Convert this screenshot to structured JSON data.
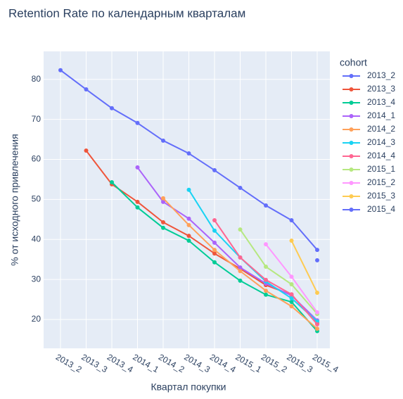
{
  "chart_data": {
    "type": "line",
    "title": "Retention Rate по календарным кварталам",
    "x_label": "Квартал покупки",
    "y_label": "% от исходного привлечения",
    "legend_title": "cohort",
    "categories": [
      "2013_2",
      "2013_3",
      "2013_4",
      "2014_1",
      "2014_2",
      "2014_3",
      "2014_4",
      "2015_1",
      "2015_2",
      "2015_3",
      "2015_4"
    ],
    "ylim": [
      12.8,
      87.0
    ],
    "yticks": [
      20,
      30,
      40,
      50,
      60,
      70,
      80
    ],
    "grid": true,
    "series": [
      {
        "name": "2013_2",
        "color": "#636efa",
        "values": [
          82.3,
          77.5,
          72.8,
          69.1,
          64.7,
          61.5,
          57.3,
          52.9,
          48.5,
          44.8,
          37.4
        ]
      },
      {
        "name": "2013_3",
        "color": "#EF553B",
        "values": [
          null,
          62.2,
          53.8,
          49.4,
          44.3,
          40.9,
          36.5,
          32.7,
          28.6,
          26.2,
          19.1
        ]
      },
      {
        "name": "2013_4",
        "color": "#00cc96",
        "values": [
          null,
          null,
          54.3,
          48.0,
          42.9,
          39.7,
          34.3,
          29.7,
          26.2,
          24.4,
          17.1
        ]
      },
      {
        "name": "2014_1",
        "color": "#ab63fa",
        "values": [
          null,
          null,
          null,
          58.0,
          49.4,
          45.2,
          39.2,
          33.0,
          29.0,
          26.0,
          19.8
        ]
      },
      {
        "name": "2014_2",
        "color": "#FFA15A",
        "values": [
          null,
          null,
          null,
          null,
          50.3,
          43.6,
          37.4,
          32.1,
          27.2,
          23.3,
          17.7
        ]
      },
      {
        "name": "2014_3",
        "color": "#19d3f3",
        "values": [
          null,
          null,
          null,
          null,
          null,
          52.4,
          42.2,
          35.5,
          29.5,
          25.3,
          19.5
        ]
      },
      {
        "name": "2014_4",
        "color": "#FF6692",
        "values": [
          null,
          null,
          null,
          null,
          null,
          null,
          44.8,
          35.5,
          29.9,
          26.3,
          18.8
        ]
      },
      {
        "name": "2015_1",
        "color": "#B6E880",
        "values": [
          null,
          null,
          null,
          null,
          null,
          null,
          null,
          42.5,
          33.2,
          28.8,
          21.4
        ]
      },
      {
        "name": "2015_2",
        "color": "#FF97FF",
        "values": [
          null,
          null,
          null,
          null,
          null,
          null,
          null,
          null,
          38.8,
          30.7,
          21.8
        ]
      },
      {
        "name": "2015_3",
        "color": "#FECB52",
        "values": [
          null,
          null,
          null,
          null,
          null,
          null,
          null,
          null,
          null,
          39.7,
          26.7
        ]
      },
      {
        "name": "2015_4",
        "color": "#636efa",
        "values": [
          null,
          null,
          null,
          null,
          null,
          null,
          null,
          null,
          null,
          null,
          34.8
        ]
      }
    ]
  }
}
